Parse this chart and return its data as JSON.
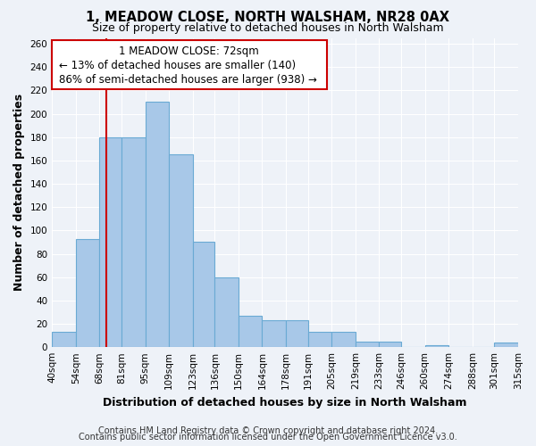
{
  "title": "1, MEADOW CLOSE, NORTH WALSHAM, NR28 0AX",
  "subtitle": "Size of property relative to detached houses in North Walsham",
  "xlabel": "Distribution of detached houses by size in North Walsham",
  "ylabel": "Number of detached properties",
  "bins": [
    40,
    54,
    68,
    81,
    95,
    109,
    123,
    136,
    150,
    164,
    178,
    191,
    205,
    219,
    233,
    246,
    260,
    274,
    288,
    301,
    315
  ],
  "counts": [
    13,
    93,
    180,
    180,
    210,
    165,
    90,
    60,
    27,
    23,
    23,
    13,
    13,
    5,
    5,
    0,
    2,
    0,
    0,
    4
  ],
  "bin_labels": [
    "40sqm",
    "54sqm",
    "68sqm",
    "81sqm",
    "95sqm",
    "109sqm",
    "123sqm",
    "136sqm",
    "150sqm",
    "164sqm",
    "178sqm",
    "191sqm",
    "205sqm",
    "219sqm",
    "233sqm",
    "246sqm",
    "260sqm",
    "274sqm",
    "288sqm",
    "301sqm",
    "315sqm"
  ],
  "bar_color": "#a8c8e8",
  "bar_edge_color": "#6aaad4",
  "property_line_x": 72,
  "property_line_color": "#cc0000",
  "annotation_line1": "1 MEADOW CLOSE: 72sqm",
  "annotation_line2": "← 13% of detached houses are smaller (140)",
  "annotation_line3": "86% of semi-detached houses are larger (938) →",
  "ylim": [
    0,
    265
  ],
  "yticks": [
    0,
    20,
    40,
    60,
    80,
    100,
    120,
    140,
    160,
    180,
    200,
    220,
    240,
    260
  ],
  "footer_line1": "Contains HM Land Registry data © Crown copyright and database right 2024.",
  "footer_line2": "Contains public sector information licensed under the Open Government Licence v3.0.",
  "bg_color": "#eef2f8",
  "plot_bg_color": "#eef2f8",
  "grid_color": "#ffffff",
  "title_fontsize": 10.5,
  "subtitle_fontsize": 9,
  "axis_label_fontsize": 9,
  "tick_fontsize": 7.5,
  "annotation_fontsize": 8.5,
  "footer_fontsize": 7
}
